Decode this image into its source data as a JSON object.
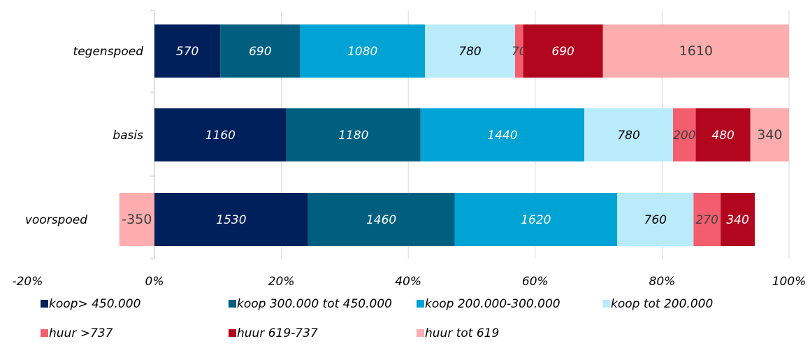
{
  "chart_data": {
    "type": "bar",
    "orientation": "horizontal",
    "stacked": "percent",
    "categories": [
      "tegenspoed",
      "basis",
      "voorspoed"
    ],
    "series": [
      {
        "name": "koop> 450.000",
        "color": "#00205b",
        "values": [
          570,
          1160,
          1530
        ],
        "labels": [
          "570",
          "1160",
          "1530"
        ]
      },
      {
        "name": "koop 300.000 tot 450.000",
        "color": "#005f7f",
        "values": [
          690,
          1180,
          1460
        ],
        "labels": [
          "690",
          "1180",
          "1460"
        ]
      },
      {
        "name": "koop 200.000-300.000",
        "color": "#00a3d3",
        "values": [
          1080,
          1440,
          1620
        ],
        "labels": [
          "1080",
          "1440",
          "1620"
        ]
      },
      {
        "name": "koop tot 200.000",
        "color": "#b9ebfb",
        "values": [
          780,
          780,
          760
        ],
        "labels": [
          "780",
          "780",
          "760"
        ]
      },
      {
        "name": "huur >737",
        "color": "#f25e6e",
        "values": [
          70,
          200,
          270
        ],
        "labels": [
          "70",
          "200",
          "270"
        ]
      },
      {
        "name": "huur 619-737",
        "color": "#b2061e",
        "values": [
          690,
          480,
          340
        ],
        "labels": [
          "690",
          "480",
          "340"
        ]
      },
      {
        "name": "huur tot 619",
        "color": "#fdadad",
        "values": [
          1610,
          340,
          -350
        ],
        "labels": [
          "1610",
          "340",
          "-350"
        ]
      }
    ],
    "xlim": [
      -20,
      100
    ],
    "x_ticks": [
      "-20%",
      "0%",
      "20%",
      "40%",
      "60%",
      "80%",
      "100%"
    ],
    "grid": true,
    "legend_position": "bottom"
  }
}
